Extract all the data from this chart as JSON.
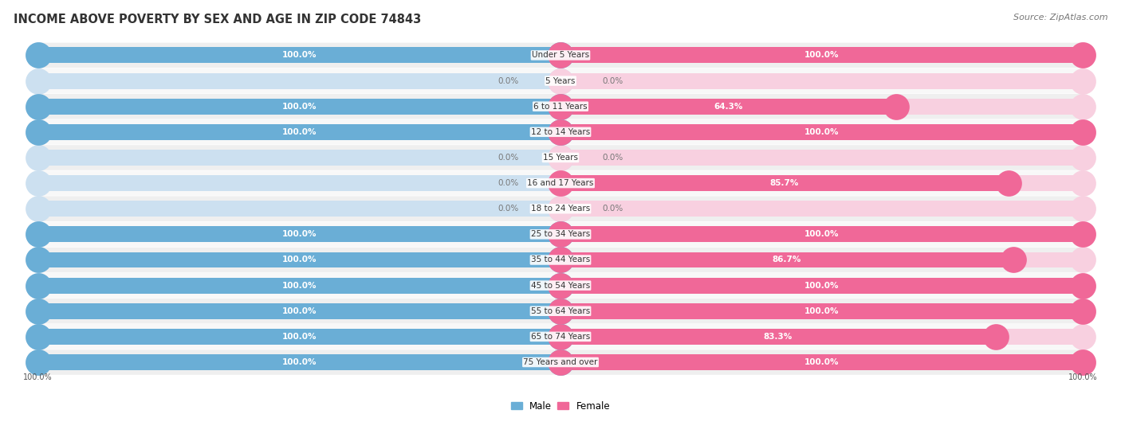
{
  "title": "INCOME ABOVE POVERTY BY SEX AND AGE IN ZIP CODE 74843",
  "source": "Source: ZipAtlas.com",
  "categories": [
    "Under 5 Years",
    "5 Years",
    "6 to 11 Years",
    "12 to 14 Years",
    "15 Years",
    "16 and 17 Years",
    "18 to 24 Years",
    "25 to 34 Years",
    "35 to 44 Years",
    "45 to 54 Years",
    "55 to 64 Years",
    "65 to 74 Years",
    "75 Years and over"
  ],
  "male_values": [
    100.0,
    0.0,
    100.0,
    100.0,
    0.0,
    0.0,
    0.0,
    100.0,
    100.0,
    100.0,
    100.0,
    100.0,
    100.0
  ],
  "female_values": [
    100.0,
    0.0,
    64.3,
    100.0,
    0.0,
    85.7,
    0.0,
    100.0,
    86.7,
    100.0,
    100.0,
    83.3,
    100.0
  ],
  "male_color": "#6aaed6",
  "female_color": "#f06898",
  "male_zero_color": "#cce0f0",
  "female_zero_color": "#f8d0e0",
  "row_bg_even": "#efefef",
  "row_bg_odd": "#f8f8f8",
  "title_fontsize": 10.5,
  "source_fontsize": 8,
  "label_fontsize": 7.5,
  "cat_fontsize": 7.5
}
